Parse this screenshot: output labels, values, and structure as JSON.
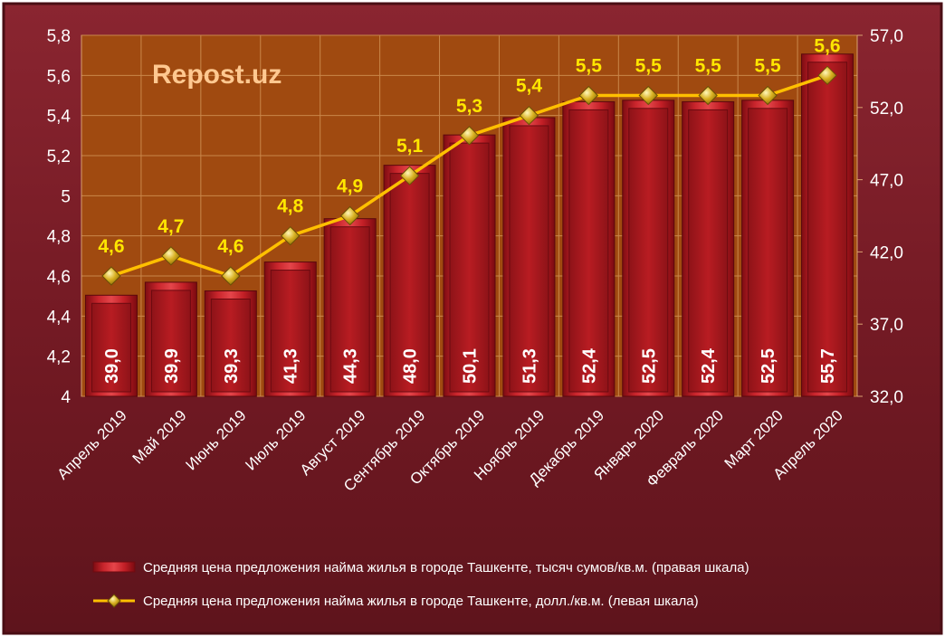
{
  "watermark": "Repost.uz",
  "chart_data": {
    "type": "bar+line",
    "categories": [
      "Апрель 2019",
      "Май 2019",
      "Июнь 2019",
      "Июль 2019",
      "Август 2019",
      "Сентябрь 2019",
      "Октябрь 2019",
      "Ноябрь 2019",
      "Декабрь 2019",
      "Январь 2020",
      "Февраль 2020",
      "Март 2020",
      "Апрель 2020"
    ],
    "series": [
      {
        "name": "Средняя цена предложения найма жилья в городе Ташкенте, тысяч сумов/кв.м. (правая шкала)",
        "type": "bar",
        "axis": "right",
        "values": [
          39.0,
          39.9,
          39.3,
          41.3,
          44.3,
          48.0,
          50.1,
          51.3,
          52.4,
          52.5,
          52.4,
          52.5,
          55.7
        ],
        "labels": [
          "39,0",
          "39,9",
          "39,3",
          "41,3",
          "44,3",
          "48,0",
          "50,1",
          "51,3",
          "52,4",
          "52,5",
          "52,4",
          "52,5",
          "55,7"
        ],
        "color": "#c41e24"
      },
      {
        "name": "Средняя цена предложения найма жилья в городе Ташкенте, долл./кв.м. (левая шкала)",
        "type": "line",
        "axis": "left",
        "values": [
          4.6,
          4.7,
          4.6,
          4.8,
          4.9,
          5.1,
          5.3,
          5.4,
          5.5,
          5.5,
          5.5,
          5.5,
          5.6
        ],
        "labels": [
          "4,6",
          "4,7",
          "4,6",
          "4,8",
          "4,9",
          "5,1",
          "5,3",
          "5,4",
          "5,5",
          "5,5",
          "5,5",
          "5,5",
          "5,6"
        ],
        "color": "#ffc000"
      }
    ],
    "left_axis": {
      "ylim": [
        4,
        5.8
      ],
      "ticks": [
        4,
        4.2,
        4.4,
        4.6,
        4.8,
        5,
        5.2,
        5.4,
        5.6,
        5.8
      ],
      "tick_labels": [
        "4",
        "4,2",
        "4,4",
        "4,6",
        "4,8",
        "5",
        "5,2",
        "5,4",
        "5,6",
        "5,8"
      ]
    },
    "right_axis": {
      "ylim": [
        32,
        57
      ],
      "ticks": [
        32,
        37,
        42,
        47,
        52,
        57
      ],
      "tick_labels": [
        "32,0",
        "37,0",
        "42,0",
        "47,0",
        "52,0",
        "57,0"
      ]
    },
    "grid": true,
    "legend_position": "bottom",
    "colors": {
      "background": "#7a1c24",
      "plot_area": "#a04a10",
      "gridline": "#c9874a"
    }
  }
}
